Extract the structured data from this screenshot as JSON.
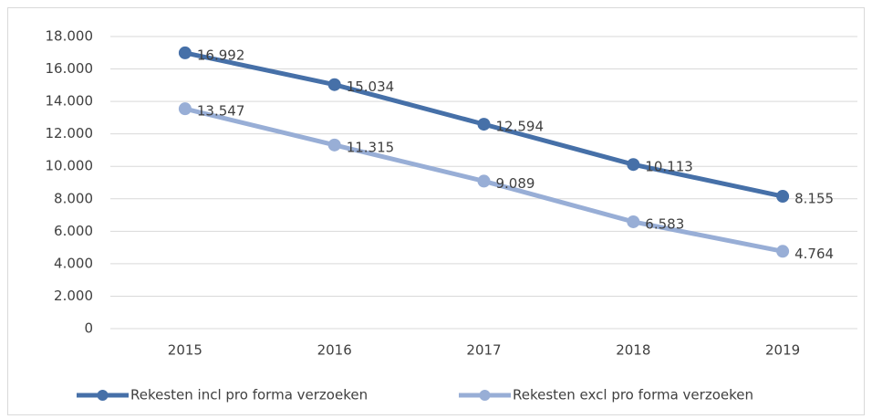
{
  "chart_data": {
    "type": "line",
    "categories": [
      "2015",
      "2016",
      "2017",
      "2018",
      "2019"
    ],
    "series": [
      {
        "name": "Rekesten incl pro forma verzoeken",
        "color": "#4670a8",
        "values": [
          16992,
          15034,
          12594,
          10113,
          8155
        ],
        "value_labels": [
          "16.992",
          "15.034",
          "12.594",
          "10.113",
          "8.155"
        ]
      },
      {
        "name": "Rekesten excl pro forma verzoeken",
        "color": "#98aed6",
        "values": [
          13547,
          11315,
          9089,
          6583,
          4764
        ],
        "value_labels": [
          "13.547",
          "11.315",
          "9.089",
          "6.583",
          "4.764"
        ]
      }
    ],
    "ylim": [
      0,
      18000
    ],
    "yticks": [
      0,
      {
        "value": 2000,
        "label": "2.000"
      },
      {
        "value": 4000,
        "label": "4.000"
      },
      {
        "value": 6000,
        "label": "6.000"
      },
      {
        "value": 8000,
        "label": "8.000"
      },
      {
        "value": 10000,
        "label": "10.000"
      },
      {
        "value": 12000,
        "label": "12.000"
      },
      {
        "value": 14000,
        "label": "14.000"
      },
      {
        "value": 16000,
        "label": "16.000"
      },
      {
        "value": 18000,
        "label": "18.000"
      }
    ],
    "grid": true,
    "legend": "bottom"
  }
}
